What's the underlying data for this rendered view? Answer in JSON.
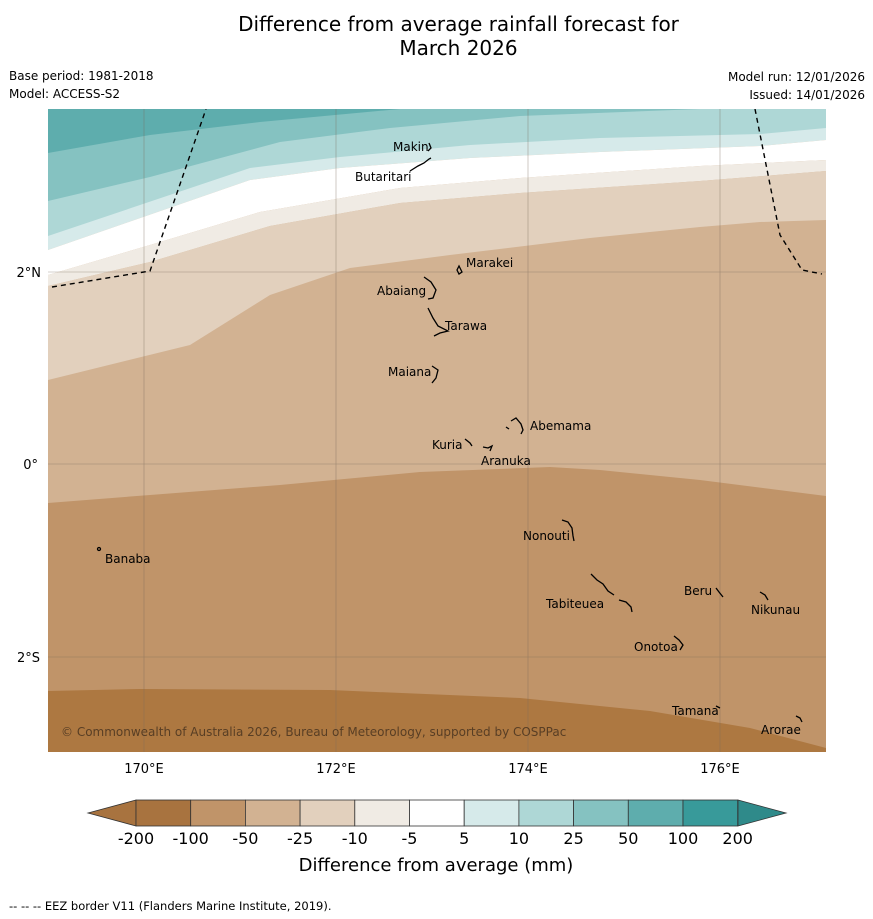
{
  "title_line1": "Difference from average rainfall forecast for",
  "title_line2": "March 2026",
  "base_period": "Base period: 1981-2018",
  "model": "Model: ACCESS-S2",
  "model_run": "Model run: 12/01/2026",
  "issued": "Issued: 14/01/2026",
  "copyright": "© Commonwealth of Australia 2026, Bureau of Meteorology, supported by COSPPac",
  "footer": "--  --  -- EEZ border V11 (Flanders Marine Institute, 2019).",
  "lon_labels": [
    "170°E",
    "172°E",
    "174°E",
    "176°E"
  ],
  "lat_labels": [
    "2°N",
    "0°",
    "2°S"
  ],
  "islands": [
    {
      "name": "Makin"
    },
    {
      "name": "Butaritari"
    },
    {
      "name": "Marakei"
    },
    {
      "name": "Abaiang"
    },
    {
      "name": "Tarawa"
    },
    {
      "name": "Maiana"
    },
    {
      "name": "Abemama"
    },
    {
      "name": "Kuria"
    },
    {
      "name": "Aranuka"
    },
    {
      "name": "Nonouti"
    },
    {
      "name": "Banaba"
    },
    {
      "name": "Beru"
    },
    {
      "name": "Nikunau"
    },
    {
      "name": "Tabiteuea"
    },
    {
      "name": "Onotoa"
    },
    {
      "name": "Tamana"
    },
    {
      "name": "Arorae"
    }
  ],
  "legend": {
    "title": "Difference from average (mm)",
    "ticks": [
      "-200",
      "-100",
      "-50",
      "-25",
      "-10",
      "-5",
      "5",
      "10",
      "25",
      "50",
      "100",
      "200"
    ],
    "colors": [
      "#a8733f",
      "#c09469",
      "#d2b292",
      "#e2d0bd",
      "#f0ebe4",
      "#ffffff",
      "#d6eaea",
      "#aed7d6",
      "#85c2c1",
      "#5eadad",
      "#389a9a",
      "#2f8a8a"
    ]
  },
  "colors": {
    "dry_200": "#ad7841",
    "dry_100": "#c09469",
    "dry_50": "#d2b292",
    "dry_25": "#e2d0bd",
    "dry_10": "#f0ebe4",
    "neutral": "#ffffff",
    "wet_10": "#d6eaea",
    "wet_25": "#aed7d6",
    "wet_50": "#85c2c1",
    "wet_100": "#5eadad",
    "wet_200": "#389a9a"
  }
}
